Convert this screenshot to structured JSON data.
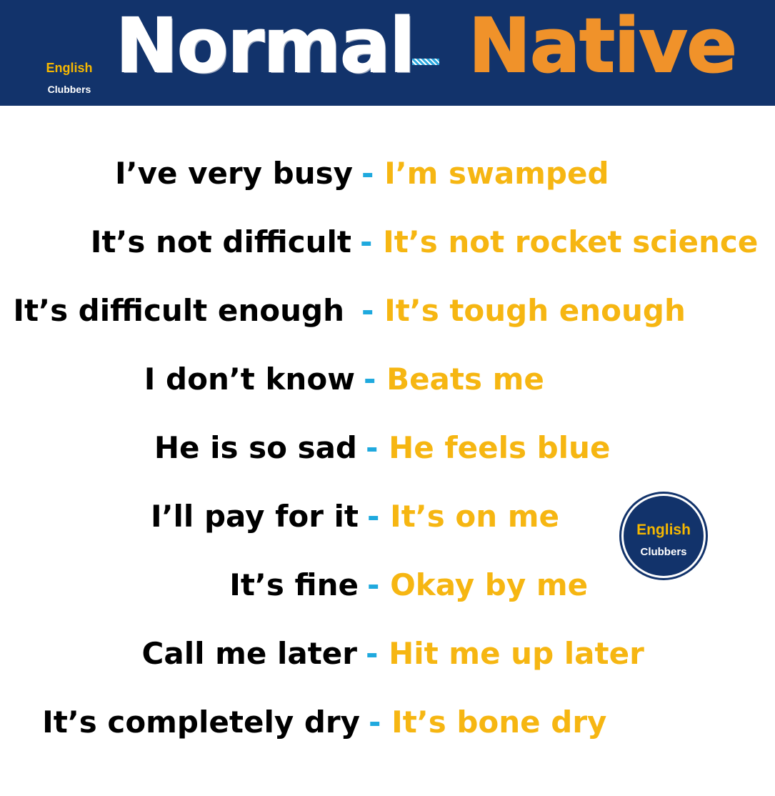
{
  "header": {
    "brand_line1": "English",
    "brand_line2": "Clubbers",
    "title_normal": "Normal",
    "title_native": "Native"
  },
  "badge": {
    "line1": "English",
    "line2": "Clubbers"
  },
  "separator": "-",
  "phrases": [
    {
      "normal": "I’ve very busy",
      "native": "I’m swamped"
    },
    {
      "normal": "It’s not difficult",
      "native": "It’s not rocket science"
    },
    {
      "normal": "It’s difficult enough",
      "native": "It’s tough enough"
    },
    {
      "normal": "I don’t know",
      "native": "Beats me"
    },
    {
      "normal": "He is so sad",
      "native": "He feels blue"
    },
    {
      "normal": "I’ll pay for it",
      "native": "It’s on me"
    },
    {
      "normal": "It’s fine",
      "native": "Okay by me"
    },
    {
      "normal": "Call me later",
      "native": "Hit me up later"
    },
    {
      "normal": "It’s completely dry",
      "native": "It’s bone dry"
    }
  ],
  "colors": {
    "header_bg": "#12336b",
    "title_normal": "#ffffff",
    "title_native": "#f0922a",
    "normal_text": "#000000",
    "separator": "#1fa9de",
    "native_text": "#f6b612",
    "brand_accent": "#f5b700"
  }
}
